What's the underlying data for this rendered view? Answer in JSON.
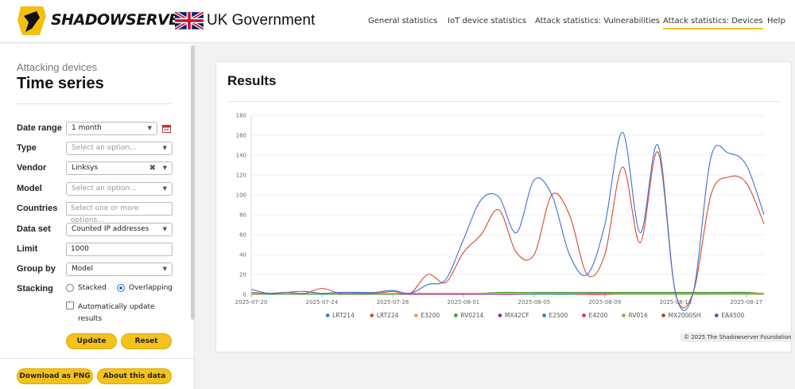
{
  "brand": {
    "logo_text": "SHADOWSERVER",
    "partner": "UK Government"
  },
  "nav": [
    "General statistics",
    "IoT device statistics",
    "Attack statistics: Vulnerabilities",
    "Attack statistics: Devices",
    "Help"
  ],
  "sidebar": {
    "subtitle": "Attacking devices",
    "title": "Time series",
    "fields": {
      "date_range": {
        "label": "Date range",
        "value": "1 month"
      },
      "type": {
        "label": "Type",
        "placeholder": "Select an option..."
      },
      "vendor": {
        "label": "Vendor",
        "value": "Linksys"
      },
      "model": {
        "label": "Model",
        "placeholder": "Select an option..."
      },
      "countries": {
        "label": "Countries",
        "placeholder": "Select one or more options..."
      },
      "data_set": {
        "label": "Data set",
        "value": "Counted IP addresses"
      },
      "limit": {
        "label": "Limit",
        "value": "1000"
      },
      "group_by": {
        "label": "Group by",
        "value": "Model"
      },
      "stacking": {
        "label": "Stacking",
        "options": [
          "Stacked",
          "Overlapping"
        ],
        "selected": "Overlapping"
      },
      "auto_update": {
        "label": "Automatically update results",
        "checked": false
      }
    },
    "buttons": {
      "update": "Update",
      "reset": "Reset",
      "download": "Download as PNG",
      "about": "About this data"
    }
  },
  "main": {
    "title": "Results",
    "credit": "© 2025 The Shadowserver Foundation"
  },
  "chart_data": {
    "type": "line",
    "title": "",
    "xlabel": "",
    "ylabel": "",
    "ylim": [
      0,
      180
    ],
    "yticks": [
      0,
      20,
      40,
      60,
      80,
      100,
      120,
      140,
      160,
      180
    ],
    "x": [
      "2025-07-20",
      "2025-07-21",
      "2025-07-22",
      "2025-07-23",
      "2025-07-24",
      "2025-07-25",
      "2025-07-26",
      "2025-07-27",
      "2025-07-28",
      "2025-07-29",
      "2025-07-30",
      "2025-07-31",
      "2025-08-01",
      "2025-08-02",
      "2025-08-03",
      "2025-08-04",
      "2025-08-05",
      "2025-08-06",
      "2025-08-07",
      "2025-08-08",
      "2025-08-09",
      "2025-08-10",
      "2025-08-11",
      "2025-08-12",
      "2025-08-13",
      "2025-08-14",
      "2025-08-15",
      "2025-08-16",
      "2025-08-17",
      "2025-08-18"
    ],
    "xticks": [
      "2025-07-20",
      "2025-07-24",
      "2025-07-28",
      "2025-08-01",
      "2025-08-05",
      "2025-08-09",
      "2025-08-13",
      "2025-08-17"
    ],
    "grid": true,
    "legend": "bottom",
    "series": [
      {
        "name": "LRT214",
        "color": "#3b6fd6",
        "values": [
          5,
          1,
          2,
          3,
          1,
          2,
          2,
          2,
          4,
          1,
          10,
          15,
          55,
          95,
          98,
          62,
          115,
          100,
          40,
          20,
          70,
          163,
          62,
          150,
          1,
          2,
          138,
          142,
          130,
          80
        ]
      },
      {
        "name": "LRT224",
        "color": "#d9472b",
        "values": [
          2,
          1,
          2,
          1,
          6,
          1,
          1,
          1,
          3,
          1,
          20,
          12,
          42,
          60,
          85,
          42,
          40,
          100,
          80,
          20,
          40,
          128,
          52,
          143,
          1,
          2,
          100,
          118,
          112,
          71
        ]
      },
      {
        "name": "E3200",
        "color": "#f0a030",
        "values": [
          1,
          1,
          1,
          1,
          1,
          1,
          1,
          1,
          1,
          1,
          1,
          1,
          1,
          1,
          1,
          1,
          1,
          1,
          1,
          1,
          1,
          1,
          1,
          1,
          1,
          1,
          1,
          1,
          1,
          1
        ]
      },
      {
        "name": "RV0214",
        "color": "#2f9e44",
        "values": [
          0,
          0,
          0,
          0,
          0,
          0,
          0,
          0,
          0,
          1,
          1,
          1,
          1,
          1,
          2,
          2,
          2,
          2,
          2,
          2,
          2,
          2,
          2,
          2,
          2,
          2,
          2,
          2,
          2,
          1
        ]
      },
      {
        "name": "MX42CF",
        "color": "#8e24aa",
        "values": [
          0,
          0,
          0,
          0,
          0,
          0,
          0,
          0,
          0,
          0,
          0,
          0,
          0,
          0,
          0,
          0,
          1,
          1,
          1,
          1,
          1,
          1,
          1,
          1,
          1,
          1,
          1,
          1,
          1,
          1
        ]
      },
      {
        "name": "E2500",
        "color": "#1e88a8",
        "values": [
          0,
          0,
          0,
          0,
          0,
          0,
          0,
          0,
          0,
          0,
          0,
          0,
          0,
          0,
          0,
          0,
          0,
          0,
          0,
          1,
          1,
          1,
          1,
          1,
          1,
          1,
          1,
          1,
          1,
          1
        ]
      },
      {
        "name": "E4200",
        "color": "#e91e63",
        "values": [
          0,
          0,
          0,
          0,
          0,
          0,
          0,
          0,
          0,
          0,
          0,
          0,
          0,
          0,
          0,
          0,
          0,
          0,
          0,
          0,
          0,
          1,
          1,
          1,
          1,
          1,
          1,
          1,
          1,
          1
        ]
      },
      {
        "name": "RV016",
        "color": "#7cb342",
        "values": [
          0,
          0,
          0,
          0,
          0,
          0,
          0,
          0,
          0,
          0,
          0,
          0,
          0,
          0,
          0,
          0,
          0,
          0,
          0,
          0,
          0,
          0,
          0,
          0,
          0,
          0,
          0,
          0,
          0,
          0
        ]
      },
      {
        "name": "MX2000SH",
        "color": "#b23a2e",
        "values": [
          0,
          0,
          0,
          0,
          0,
          0,
          0,
          0,
          0,
          0,
          0,
          0,
          0,
          0,
          0,
          0,
          0,
          0,
          0,
          0,
          0,
          0,
          0,
          0,
          0,
          0,
          0,
          1,
          1,
          1
        ]
      },
      {
        "name": "EA4500",
        "color": "#3557b8",
        "values": [
          0,
          0,
          0,
          0,
          0,
          0,
          0,
          0,
          0,
          0,
          0,
          0,
          0,
          0,
          0,
          0,
          0,
          0,
          0,
          0,
          0,
          0,
          0,
          0,
          0,
          0,
          0,
          0,
          0,
          0
        ]
      }
    ]
  }
}
